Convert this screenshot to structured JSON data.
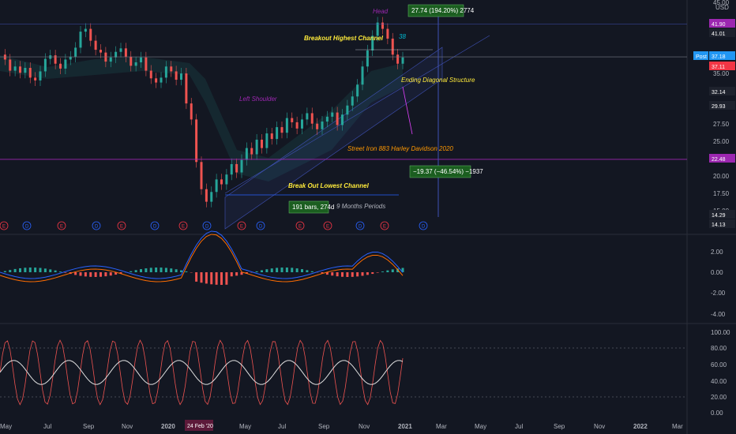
{
  "chart_data": [
    {
      "type": "line",
      "panel": "price",
      "currency": "USD",
      "yaxis_ticks": [
        "45.00",
        "35.00",
        "27.50",
        "25.00",
        "22.50",
        "20.00",
        "17.50",
        "15.00"
      ],
      "series": [
        {
          "values": [
            37.5,
            36.8,
            35.2,
            35.8,
            34.9,
            35.6,
            34.2,
            33.8,
            35.1,
            36.9,
            37.4,
            36.2,
            35.5,
            36.8,
            37.2,
            38.5,
            40.8,
            41.2,
            39.5,
            38.2,
            37.8,
            36.5,
            37.1,
            37.9,
            38.4,
            37.2,
            35.9,
            36.4,
            37.1,
            35.2,
            34.1,
            33.5,
            34.2,
            35.8,
            35.1,
            33.9,
            34.8,
            30.5,
            28.2,
            22.1,
            18.2,
            16.4,
            17.8,
            19.6,
            18.9,
            20.3,
            21.8,
            20.6,
            22.4,
            24.1,
            23.2,
            25.3,
            24.1,
            26.2,
            25.4,
            27.1,
            26.3,
            28.4,
            27.8,
            26.9,
            28.2,
            29.1,
            27.6,
            26.8,
            27.9,
            28.6,
            29.2,
            27.4,
            28.9,
            30.2,
            31.5,
            33.2,
            35.8,
            38.1,
            40.2,
            42.1,
            41.2,
            39.8,
            37.5,
            36.2,
            37.1
          ]
        }
      ],
      "price_labels": [
        {
          "text": "41.90",
          "color": "#9c27b0"
        },
        {
          "text": "41.01",
          "color": "#1e222d"
        },
        {
          "text": "Post",
          "color": "#2196f3"
        },
        {
          "text": "37.18",
          "color": "#2196f3"
        },
        {
          "text": "37.11",
          "color": "#f23645"
        },
        {
          "text": "32.14",
          "color": "#1e222d"
        },
        {
          "text": "29.93",
          "color": "#1e222d"
        },
        {
          "text": "22.48",
          "color": "#9c27b0"
        },
        {
          "text": "14.29",
          "color": "#1e222d"
        },
        {
          "text": "14.13",
          "color": "#1e222d"
        }
      ],
      "annotations": {
        "head": "Head",
        "breakout_high": "Breakout Highest Channel",
        "count": "38",
        "ending_diagonal": "Ending Diagonal Structure",
        "left_shoulder": "Left Shoulder",
        "street_iron": "Street Iron 883 Harley Davidson 2020",
        "breakout_low": "Break Out Lowest Channel",
        "months": "9 Months Periods"
      },
      "measure_boxes": {
        "up": "27.74 (194.20%) 2774",
        "down": "−19.37 (−46.54%) −1937",
        "bars": "191 bars, 274d"
      },
      "events": [
        "E",
        "D",
        "E",
        "D",
        "E",
        "D",
        "E",
        "D",
        "E",
        "D",
        "E",
        "E",
        "D",
        "E",
        "D",
        "E"
      ]
    },
    {
      "type": "line",
      "panel": "macd",
      "yaxis_ticks": [
        "2.00",
        "0.00",
        "-2.00",
        "-4.00"
      ]
    },
    {
      "type": "line",
      "panel": "oscillator",
      "yaxis_ticks": [
        "100.00",
        "80.00",
        "60.00",
        "40.00",
        "20.00",
        "0.00"
      ]
    }
  ],
  "xaxis": [
    "May",
    "Jul",
    "Sep",
    "Nov",
    "2020",
    "Mar",
    "May",
    "Jul",
    "Sep",
    "Nov",
    "2021",
    "Mar",
    "May",
    "Jul",
    "Sep",
    "Nov",
    "2022",
    "Mar"
  ],
  "xaxis_bold": [
    "2020",
    "2021",
    "2022"
  ],
  "cursor_date": "24 Feb '20",
  "colors": {
    "background": "#131722",
    "up": "#26a69a",
    "down": "#ef5350",
    "accent_purple": "#9c27b0",
    "blue": "#2962ff"
  }
}
